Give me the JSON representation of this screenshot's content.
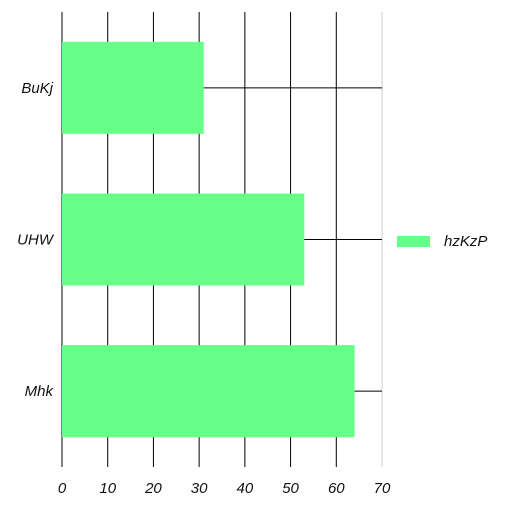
{
  "chart_data": {
    "type": "bar",
    "orientation": "horizontal",
    "categories": [
      "BuKj",
      "UHW",
      "Mhk"
    ],
    "series": [
      {
        "name": "hzKzP",
        "values": [
          31,
          53,
          64
        ],
        "color": "#66ff88"
      }
    ],
    "title": "",
    "xlabel": "",
    "ylabel": "",
    "xlim": [
      0,
      70
    ],
    "x_ticks": [
      0,
      10,
      20,
      30,
      40,
      50,
      60,
      70
    ],
    "grid": true,
    "legend_position": "right"
  },
  "colors": {
    "bar": "#66ff88",
    "grid": "#000000",
    "text": "#111111"
  }
}
